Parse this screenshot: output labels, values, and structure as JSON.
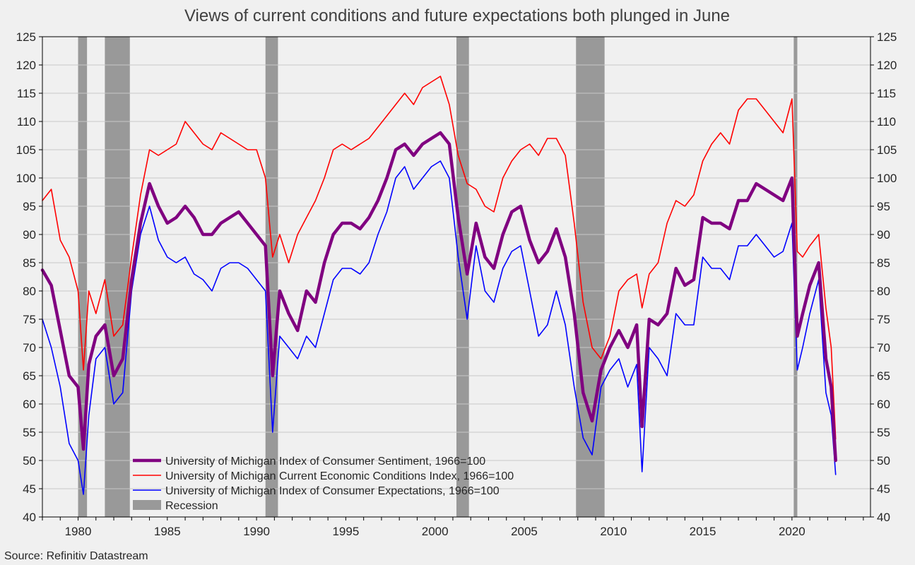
{
  "chart_data": {
    "type": "line",
    "title": "Views of current conditions and future expectations both plunged in June",
    "source": "Source: Refinitiv Datastream",
    "xlim": [
      1978.0,
      2024.4
    ],
    "ylim": [
      40,
      125
    ],
    "y_ticks": [
      40,
      45,
      50,
      55,
      60,
      65,
      70,
      75,
      80,
      85,
      90,
      95,
      100,
      105,
      110,
      115,
      120,
      125
    ],
    "x_ticks": [
      1980,
      1985,
      1990,
      1995,
      2000,
      2005,
      2010,
      2015,
      2020
    ],
    "grid": "horizontal",
    "legend_position": "bottom-left",
    "recessions": [
      {
        "start": 1980.0,
        "end": 1980.5
      },
      {
        "start": 1981.5,
        "end": 1982.9
      },
      {
        "start": 1990.5,
        "end": 1991.2
      },
      {
        "start": 2001.2,
        "end": 2001.9
      },
      {
        "start": 2007.9,
        "end": 2009.5
      },
      {
        "start": 2020.1,
        "end": 2020.3
      }
    ],
    "recession_legend": {
      "name": "Recession",
      "color": "#999999"
    },
    "series": [
      {
        "name": "University of Michigan Index of Consumer Sentiment, 1966=100",
        "color": "#800080",
        "width": 4.5,
        "x": [
          1978.0,
          1978.5,
          1979.0,
          1979.5,
          1980.0,
          1980.3,
          1980.6,
          1981.0,
          1981.5,
          1982.0,
          1982.5,
          1983.0,
          1983.5,
          1984.0,
          1984.5,
          1985.0,
          1985.5,
          1986.0,
          1986.5,
          1987.0,
          1987.5,
          1988.0,
          1988.5,
          1989.0,
          1989.5,
          1990.0,
          1990.5,
          1990.9,
          1991.3,
          1991.8,
          1992.3,
          1992.8,
          1993.3,
          1993.8,
          1994.3,
          1994.8,
          1995.3,
          1995.8,
          1996.3,
          1996.8,
          1997.3,
          1997.8,
          1998.3,
          1998.8,
          1999.3,
          1999.8,
          2000.3,
          2000.8,
          2001.3,
          2001.8,
          2002.3,
          2002.8,
          2003.3,
          2003.8,
          2004.3,
          2004.8,
          2005.3,
          2005.8,
          2006.3,
          2006.8,
          2007.3,
          2007.8,
          2008.3,
          2008.8,
          2009.3,
          2009.8,
          2010.3,
          2010.8,
          2011.3,
          2011.6,
          2012.0,
          2012.5,
          2013.0,
          2013.5,
          2014.0,
          2014.5,
          2015.0,
          2015.5,
          2016.0,
          2016.5,
          2017.0,
          2017.5,
          2018.0,
          2018.5,
          2019.0,
          2019.5,
          2020.0,
          2020.3,
          2020.6,
          2021.0,
          2021.5,
          2021.9,
          2022.2,
          2022.45
        ],
        "values": [
          83.7,
          81.0,
          73.0,
          65.0,
          63.0,
          52.0,
          67.0,
          72.0,
          74.0,
          65.0,
          68.0,
          82.0,
          92.0,
          99.0,
          95.0,
          92.0,
          93.0,
          95.0,
          93.0,
          90.0,
          90.0,
          92.0,
          93.0,
          94.0,
          92.0,
          90.0,
          88.0,
          65.0,
          80.0,
          76.0,
          73.0,
          80.0,
          78.0,
          85.0,
          90.0,
          92.0,
          92.0,
          91.0,
          93.0,
          96.0,
          100.0,
          105.0,
          106.0,
          104.0,
          106.0,
          107.0,
          108.0,
          106.0,
          93.0,
          83.0,
          92.0,
          86.0,
          84.0,
          90.0,
          94.0,
          95.0,
          89.0,
          85.0,
          87.0,
          91.0,
          86.0,
          76.0,
          62.0,
          57.0,
          66.0,
          70.0,
          73.0,
          70.0,
          74.0,
          56.0,
          75.0,
          74.0,
          76.0,
          84.0,
          81.0,
          82.0,
          93.0,
          92.0,
          92.0,
          91.0,
          96.0,
          96.0,
          99.0,
          98.0,
          97.0,
          96.0,
          100.0,
          72.0,
          76.0,
          81.0,
          85.0,
          68.0,
          63.0,
          50.0
        ]
      },
      {
        "name": "University of Michigan Current Economic Conditions Index, 1966=100",
        "color": "#ff0000",
        "width": 1.6,
        "x": [
          1978.0,
          1978.5,
          1979.0,
          1979.5,
          1980.0,
          1980.3,
          1980.6,
          1981.0,
          1981.5,
          1982.0,
          1982.5,
          1983.0,
          1983.5,
          1984.0,
          1984.5,
          1985.0,
          1985.5,
          1986.0,
          1986.5,
          1987.0,
          1987.5,
          1988.0,
          1988.5,
          1989.0,
          1989.5,
          1990.0,
          1990.5,
          1990.9,
          1991.3,
          1991.8,
          1992.3,
          1992.8,
          1993.3,
          1993.8,
          1994.3,
          1994.8,
          1995.3,
          1995.8,
          1996.3,
          1996.8,
          1997.3,
          1997.8,
          1998.3,
          1998.8,
          1999.3,
          1999.8,
          2000.3,
          2000.8,
          2001.3,
          2001.8,
          2002.3,
          2002.8,
          2003.3,
          2003.8,
          2004.3,
          2004.8,
          2005.3,
          2005.8,
          2006.3,
          2006.8,
          2007.3,
          2007.8,
          2008.3,
          2008.8,
          2009.3,
          2009.8,
          2010.3,
          2010.8,
          2011.3,
          2011.6,
          2012.0,
          2012.5,
          2013.0,
          2013.5,
          2014.0,
          2014.5,
          2015.0,
          2015.5,
          2016.0,
          2016.5,
          2017.0,
          2017.5,
          2018.0,
          2018.5,
          2019.0,
          2019.5,
          2020.0,
          2020.3,
          2020.6,
          2021.0,
          2021.5,
          2021.9,
          2022.2,
          2022.45
        ],
        "values": [
          96.0,
          98.0,
          89.0,
          86.0,
          80.0,
          66.0,
          80.0,
          76.0,
          82.0,
          72.0,
          74.0,
          86.0,
          97.0,
          105.0,
          104.0,
          105.0,
          106.0,
          110.0,
          108.0,
          106.0,
          105.0,
          108.0,
          107.0,
          106.0,
          105.0,
          105.0,
          100.0,
          86.0,
          90.0,
          85.0,
          90.0,
          93.0,
          96.0,
          100.0,
          105.0,
          106.0,
          105.0,
          106.0,
          107.0,
          109.0,
          111.0,
          113.0,
          115.0,
          113.0,
          116.0,
          117.0,
          118.0,
          113.0,
          104.0,
          99.0,
          98.0,
          95.0,
          94.0,
          100.0,
          103.0,
          105.0,
          106.0,
          104.0,
          107.0,
          107.0,
          104.0,
          92.0,
          78.0,
          70.0,
          68.0,
          72.0,
          80.0,
          82.0,
          83.0,
          77.0,
          83.0,
          85.0,
          92.0,
          96.0,
          95.0,
          97.0,
          103.0,
          106.0,
          108.0,
          106.0,
          112.0,
          114.0,
          114.0,
          112.0,
          110.0,
          108.0,
          114.0,
          87.0,
          86.0,
          88.0,
          90.0,
          77.0,
          70.0,
          53.8
        ]
      },
      {
        "name": "University of Michigan Index of Consumer Expectations, 1966=100",
        "color": "#0000ff",
        "width": 1.6,
        "x": [
          1978.0,
          1978.5,
          1979.0,
          1979.5,
          1980.0,
          1980.3,
          1980.6,
          1981.0,
          1981.5,
          1982.0,
          1982.5,
          1983.0,
          1983.5,
          1984.0,
          1984.5,
          1985.0,
          1985.5,
          1986.0,
          1986.5,
          1987.0,
          1987.5,
          1988.0,
          1988.5,
          1989.0,
          1989.5,
          1990.0,
          1990.5,
          1990.9,
          1991.3,
          1991.8,
          1992.3,
          1992.8,
          1993.3,
          1993.8,
          1994.3,
          1994.8,
          1995.3,
          1995.8,
          1996.3,
          1996.8,
          1997.3,
          1997.8,
          1998.3,
          1998.8,
          1999.3,
          1999.8,
          2000.3,
          2000.8,
          2001.3,
          2001.8,
          2002.3,
          2002.8,
          2003.3,
          2003.8,
          2004.3,
          2004.8,
          2005.3,
          2005.8,
          2006.3,
          2006.8,
          2007.3,
          2007.8,
          2008.3,
          2008.8,
          2009.3,
          2009.8,
          2010.3,
          2010.8,
          2011.3,
          2011.6,
          2012.0,
          2012.5,
          2013.0,
          2013.5,
          2014.0,
          2014.5,
          2015.0,
          2015.5,
          2016.0,
          2016.5,
          2017.0,
          2017.5,
          2018.0,
          2018.5,
          2019.0,
          2019.5,
          2020.0,
          2020.3,
          2020.6,
          2021.0,
          2021.5,
          2021.9,
          2022.2,
          2022.45
        ],
        "values": [
          75.0,
          70.0,
          63.0,
          53.0,
          50.0,
          44.0,
          58.0,
          68.0,
          70.0,
          60.0,
          62.0,
          80.0,
          90.0,
          95.0,
          89.0,
          86.0,
          85.0,
          86.0,
          83.0,
          82.0,
          80.0,
          84.0,
          85.0,
          85.0,
          84.0,
          82.0,
          80.0,
          55.0,
          72.0,
          70.0,
          68.0,
          72.0,
          70.0,
          76.0,
          82.0,
          84.0,
          84.0,
          83.0,
          85.0,
          90.0,
          94.0,
          100.0,
          102.0,
          98.0,
          100.0,
          102.0,
          103.0,
          100.0,
          86.0,
          75.0,
          88.0,
          80.0,
          78.0,
          84.0,
          87.0,
          88.0,
          80.0,
          72.0,
          74.0,
          80.0,
          74.0,
          63.0,
          54.0,
          51.0,
          63.0,
          66.0,
          68.0,
          63.0,
          67.0,
          48.0,
          70.0,
          68.0,
          65.0,
          76.0,
          74.0,
          74.0,
          86.0,
          84.0,
          84.0,
          82.0,
          88.0,
          88.0,
          90.0,
          88.0,
          86.0,
          87.0,
          92.0,
          66.0,
          70.0,
          76.0,
          82.0,
          62.0,
          58.0,
          47.5
        ]
      }
    ]
  }
}
